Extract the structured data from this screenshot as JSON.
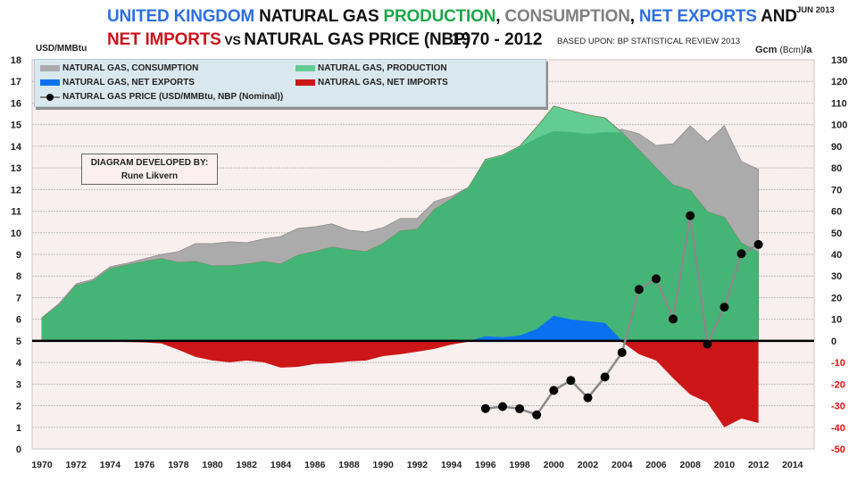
{
  "header": {
    "title_parts_line1": [
      {
        "text": "UNITED KINGDOM ",
        "color": "#2f6fe0"
      },
      {
        "text": "NATURAL GAS ",
        "color": "#111111"
      },
      {
        "text": "PRODUCTION",
        "color": "#1ea64a"
      },
      {
        "text": ", ",
        "color": "#111111"
      },
      {
        "text": "CONSUMPTION",
        "color": "#808080"
      },
      {
        "text": ", ",
        "color": "#111111"
      },
      {
        "text": "NET EXPORTS",
        "color": "#2f6fe0"
      },
      {
        "text": " AND",
        "color": "#111111"
      }
    ],
    "title_line2_a": "NET IMPORTS",
    "title_line2_vs": " VS ",
    "title_line2_b": "NATURAL GAS PRICE (NBP)",
    "years": "1970 - 2012",
    "source": "BASED UPON: BP STATISTICAL REVIEW  2013",
    "date": "JUN 2013"
  },
  "credit": {
    "line1": "DIAGRAM DEVELOPED BY:",
    "line2": "Rune Likvern"
  },
  "legend": {
    "consumption": "NATURAL GAS, CONSUMPTION",
    "production": "NATURAL GAS, PRODUCTION",
    "net_exports": "NATURAL GAS, NET EXPORTS",
    "net_imports": "NATURAL GAS, NET IMPORTS",
    "price": "NATURAL GAS PRICE (USD/MMBtu, NBP (Nominal))"
  },
  "colors": {
    "consumption": "#ababab",
    "production": "#44b577",
    "production_light": "#63cc92",
    "net_exports": "#0a72f2",
    "net_imports": "#cc1618",
    "price_line": "#8a8a8a",
    "price_marker": "#000000",
    "plot_bg": "#f9efee",
    "legend_bg": "#d9e8ef",
    "right_negative_ticks": "#e01010"
  },
  "chart_data": {
    "type": "area",
    "title": "UNITED KINGDOM NATURAL GAS PRODUCTION, CONSUMPTION, NET EXPORTS AND NET IMPORTS VS NATURAL GAS PRICE (NBP) 1970 - 2012",
    "ylabel_left": "USD/MMBtu",
    "ylabel_right_main": "Gcm ",
    "ylabel_right_sub": "(Bcm)",
    "ylabel_right_end": "/a",
    "ylim_left": [
      0,
      18
    ],
    "ylim_right": [
      -50,
      130
    ],
    "xlim": [
      1970,
      2014
    ],
    "x_ticks": [
      1970,
      1972,
      1974,
      1976,
      1978,
      1980,
      1982,
      1984,
      1986,
      1988,
      1990,
      1992,
      1994,
      1996,
      1998,
      2000,
      2002,
      2004,
      2006,
      2008,
      2010,
      2012,
      2014
    ],
    "y_ticks_left": [
      0,
      1,
      2,
      3,
      4,
      5,
      6,
      7,
      8,
      9,
      10,
      11,
      12,
      13,
      14,
      15,
      16,
      17,
      18
    ],
    "y_ticks_right": [
      -50,
      -40,
      -30,
      -20,
      -10,
      0,
      10,
      20,
      30,
      40,
      50,
      60,
      70,
      80,
      90,
      100,
      110,
      120,
      130
    ],
    "grid": true,
    "legend_position": "top-left",
    "years": [
      1970,
      1971,
      1972,
      1973,
      1974,
      1975,
      1976,
      1977,
      1978,
      1979,
      1980,
      1981,
      1982,
      1983,
      1984,
      1985,
      1986,
      1987,
      1988,
      1989,
      1990,
      1991,
      1992,
      1993,
      1994,
      1995,
      1996,
      1997,
      1998,
      1999,
      2000,
      2001,
      2002,
      2003,
      2004,
      2005,
      2006,
      2007,
      2008,
      2009,
      2010,
      2011,
      2012
    ],
    "series": [
      {
        "name": "NATURAL GAS, CONSUMPTION",
        "axis": "right",
        "unit": "Bcm/a",
        "values": [
          10.7,
          17.3,
          26.4,
          28.5,
          34.3,
          35.9,
          38.0,
          40.0,
          41.3,
          45.0,
          45.0,
          45.8,
          45.4,
          47.1,
          48.3,
          52.0,
          52.8,
          54.1,
          51.2,
          50.4,
          52.4,
          56.6,
          56.6,
          64.4,
          66.9,
          71.0,
          83.4,
          85.5,
          89.6,
          93.7,
          97.0,
          96.6,
          95.8,
          96.6,
          97.9,
          95.8,
          90.4,
          91.2,
          99.5,
          92.1,
          99.5,
          83.0,
          79.3
        ]
      },
      {
        "name": "NATURAL GAS, PRODUCTION",
        "axis": "right",
        "unit": "Bcm/a",
        "values": [
          10.7,
          16.5,
          25.6,
          27.7,
          33.4,
          35.1,
          36.7,
          38.0,
          36.3,
          36.7,
          34.7,
          34.7,
          35.5,
          36.7,
          35.5,
          39.6,
          41.3,
          43.4,
          42.1,
          41.3,
          45.0,
          50.8,
          51.6,
          60.7,
          65.6,
          71.0,
          84.0,
          86.0,
          90.0,
          99.0,
          108.6,
          106.5,
          104.5,
          103.2,
          96.4,
          88.2,
          80.0,
          72.1,
          69.6,
          59.7,
          57.1,
          45.2,
          41.0
        ]
      },
      {
        "name": "NATURAL GAS, NET EXPORTS",
        "axis": "right",
        "unit": "Bcm/a",
        "values": [
          0,
          0,
          0,
          0,
          0,
          0,
          0,
          0,
          0,
          0,
          0,
          0,
          0,
          0,
          0,
          0,
          0,
          0,
          0,
          0,
          0,
          0,
          0,
          0,
          0,
          0,
          2.1,
          1.7,
          2.5,
          5.4,
          11.6,
          9.9,
          9.1,
          8.3,
          0,
          0,
          0,
          0,
          0,
          0,
          0,
          0,
          0
        ]
      },
      {
        "name": "NATURAL GAS, NET IMPORTS",
        "axis": "right",
        "unit": "Bcm/a",
        "values": [
          -0.3,
          -0.3,
          -0.2,
          -0.2,
          -0.3,
          -0.5,
          -0.7,
          -1.2,
          -4.1,
          -7.4,
          -9.1,
          -9.9,
          -9.1,
          -9.9,
          -12.4,
          -12.0,
          -10.7,
          -10.3,
          -9.5,
          -9.1,
          -7.0,
          -6.2,
          -5.0,
          -3.7,
          -1.7,
          -0.4,
          0,
          0,
          0,
          0,
          0,
          0,
          0,
          0,
          -0.5,
          -6.2,
          -9.1,
          -17.3,
          -24.8,
          -28.5,
          -40.0,
          -35.9,
          -38.0
        ]
      },
      {
        "name": "NATURAL GAS PRICE (USD/MMBtu, NBP (Nominal))",
        "axis": "left",
        "unit": "USD/MMBtu",
        "type": "line",
        "x": [
          1996,
          1997,
          1998,
          1999,
          2000,
          2001,
          2002,
          2003,
          2004,
          2005,
          2006,
          2007,
          2008,
          2009,
          2010,
          2011,
          2012
        ],
        "values": [
          1.87,
          1.96,
          1.86,
          1.58,
          2.71,
          3.17,
          2.37,
          3.33,
          4.46,
          7.38,
          7.87,
          6.01,
          10.79,
          4.85,
          6.56,
          9.03,
          9.46
        ]
      }
    ]
  }
}
